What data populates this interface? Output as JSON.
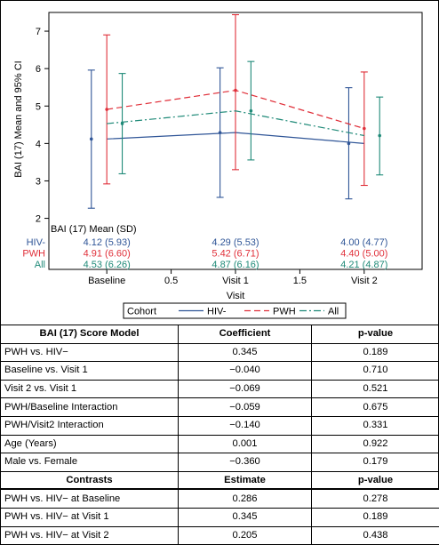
{
  "chart_data": {
    "type": "line",
    "ylabel": "BAI (17) Mean and 95% CI",
    "xlabel": "Visit",
    "categories": [
      "Baseline",
      "Visit 1",
      "Visit 2"
    ],
    "x_ticks": [
      {
        "x": 1,
        "label": "Baseline"
      },
      {
        "x": 1.5,
        "label": "0.5"
      },
      {
        "x": 2,
        "label": "Visit 1"
      },
      {
        "x": 2.5,
        "label": "1.5"
      },
      {
        "x": 3,
        "label": "Visit 2"
      }
    ],
    "ylim": [
      1.8,
      7.5
    ],
    "y_ticks": [
      "2",
      "3",
      "4",
      "5",
      "6",
      "7"
    ],
    "grid": false,
    "legend_title": "Cohort",
    "legend_position": "bottom",
    "series": [
      {
        "name": "HIV-",
        "color": "#2f5597",
        "dash": "solid",
        "offset": -0.12,
        "values": [
          4.12,
          4.29,
          4.0
        ],
        "ci_low": [
          2.27,
          2.56,
          2.52
        ],
        "ci_high": [
          5.96,
          6.02,
          5.49
        ]
      },
      {
        "name": "PWH",
        "color": "#e0303a",
        "dash": "dash",
        "offset": 0.0,
        "values": [
          4.91,
          5.42,
          4.4
        ],
        "ci_low": [
          2.92,
          3.3,
          2.88
        ],
        "ci_high": [
          6.9,
          7.44,
          5.91
        ]
      },
      {
        "name": "All",
        "color": "#1f8a78",
        "dash": "dashdot",
        "offset": 0.12,
        "values": [
          4.53,
          4.87,
          4.21
        ],
        "ci_low": [
          3.19,
          3.56,
          3.16
        ],
        "ci_high": [
          5.87,
          6.19,
          5.24
        ]
      }
    ],
    "inset_table": {
      "title": "BAI (17) Mean (SD)",
      "rows": [
        {
          "label": "HIV-",
          "color": "#2f5597",
          "cells": [
            "4.12 (5.93)",
            "4.29 (5.53)",
            "4.00 (4.77)"
          ]
        },
        {
          "label": "PWH",
          "color": "#e0303a",
          "cells": [
            "4.91 (6.60)",
            "5.42 (6.71)",
            "4.40 (5.00)"
          ]
        },
        {
          "label": "All",
          "color": "#1f8a78",
          "cells": [
            "4.53 (6.26)",
            "4.87 (6.16)",
            "4.21 (4.87)"
          ]
        }
      ]
    }
  },
  "stats_table": {
    "model_header": [
      "BAI (17) Score Model",
      "Coefficient",
      "p-value"
    ],
    "model_rows": [
      [
        "PWH vs. HIV−",
        "0.345",
        "0.189"
      ],
      [
        "Baseline vs. Visit 1",
        "−0.040",
        "0.710"
      ],
      [
        "Visit 2 vs. Visit 1",
        "−0.069",
        "0.521"
      ],
      [
        "PWH/Baseline Interaction",
        "−0.059",
        "0.675"
      ],
      [
        "PWH/Visit2 Interaction",
        "−0.140",
        "0.331"
      ],
      [
        "Age (Years)",
        "0.001",
        "0.922"
      ],
      [
        "Male vs. Female",
        "−0.360",
        "0.179"
      ]
    ],
    "contrast_header": [
      "Contrasts",
      "Estimate",
      "p-value"
    ],
    "contrast_rows": [
      [
        "PWH vs. HIV− at Baseline",
        "0.286",
        "0.278"
      ],
      [
        "PWH vs. HIV− at Visit 1",
        "0.345",
        "0.189"
      ],
      [
        "PWH vs. HIV− at Visit 2",
        "0.205",
        "0.438"
      ]
    ]
  }
}
